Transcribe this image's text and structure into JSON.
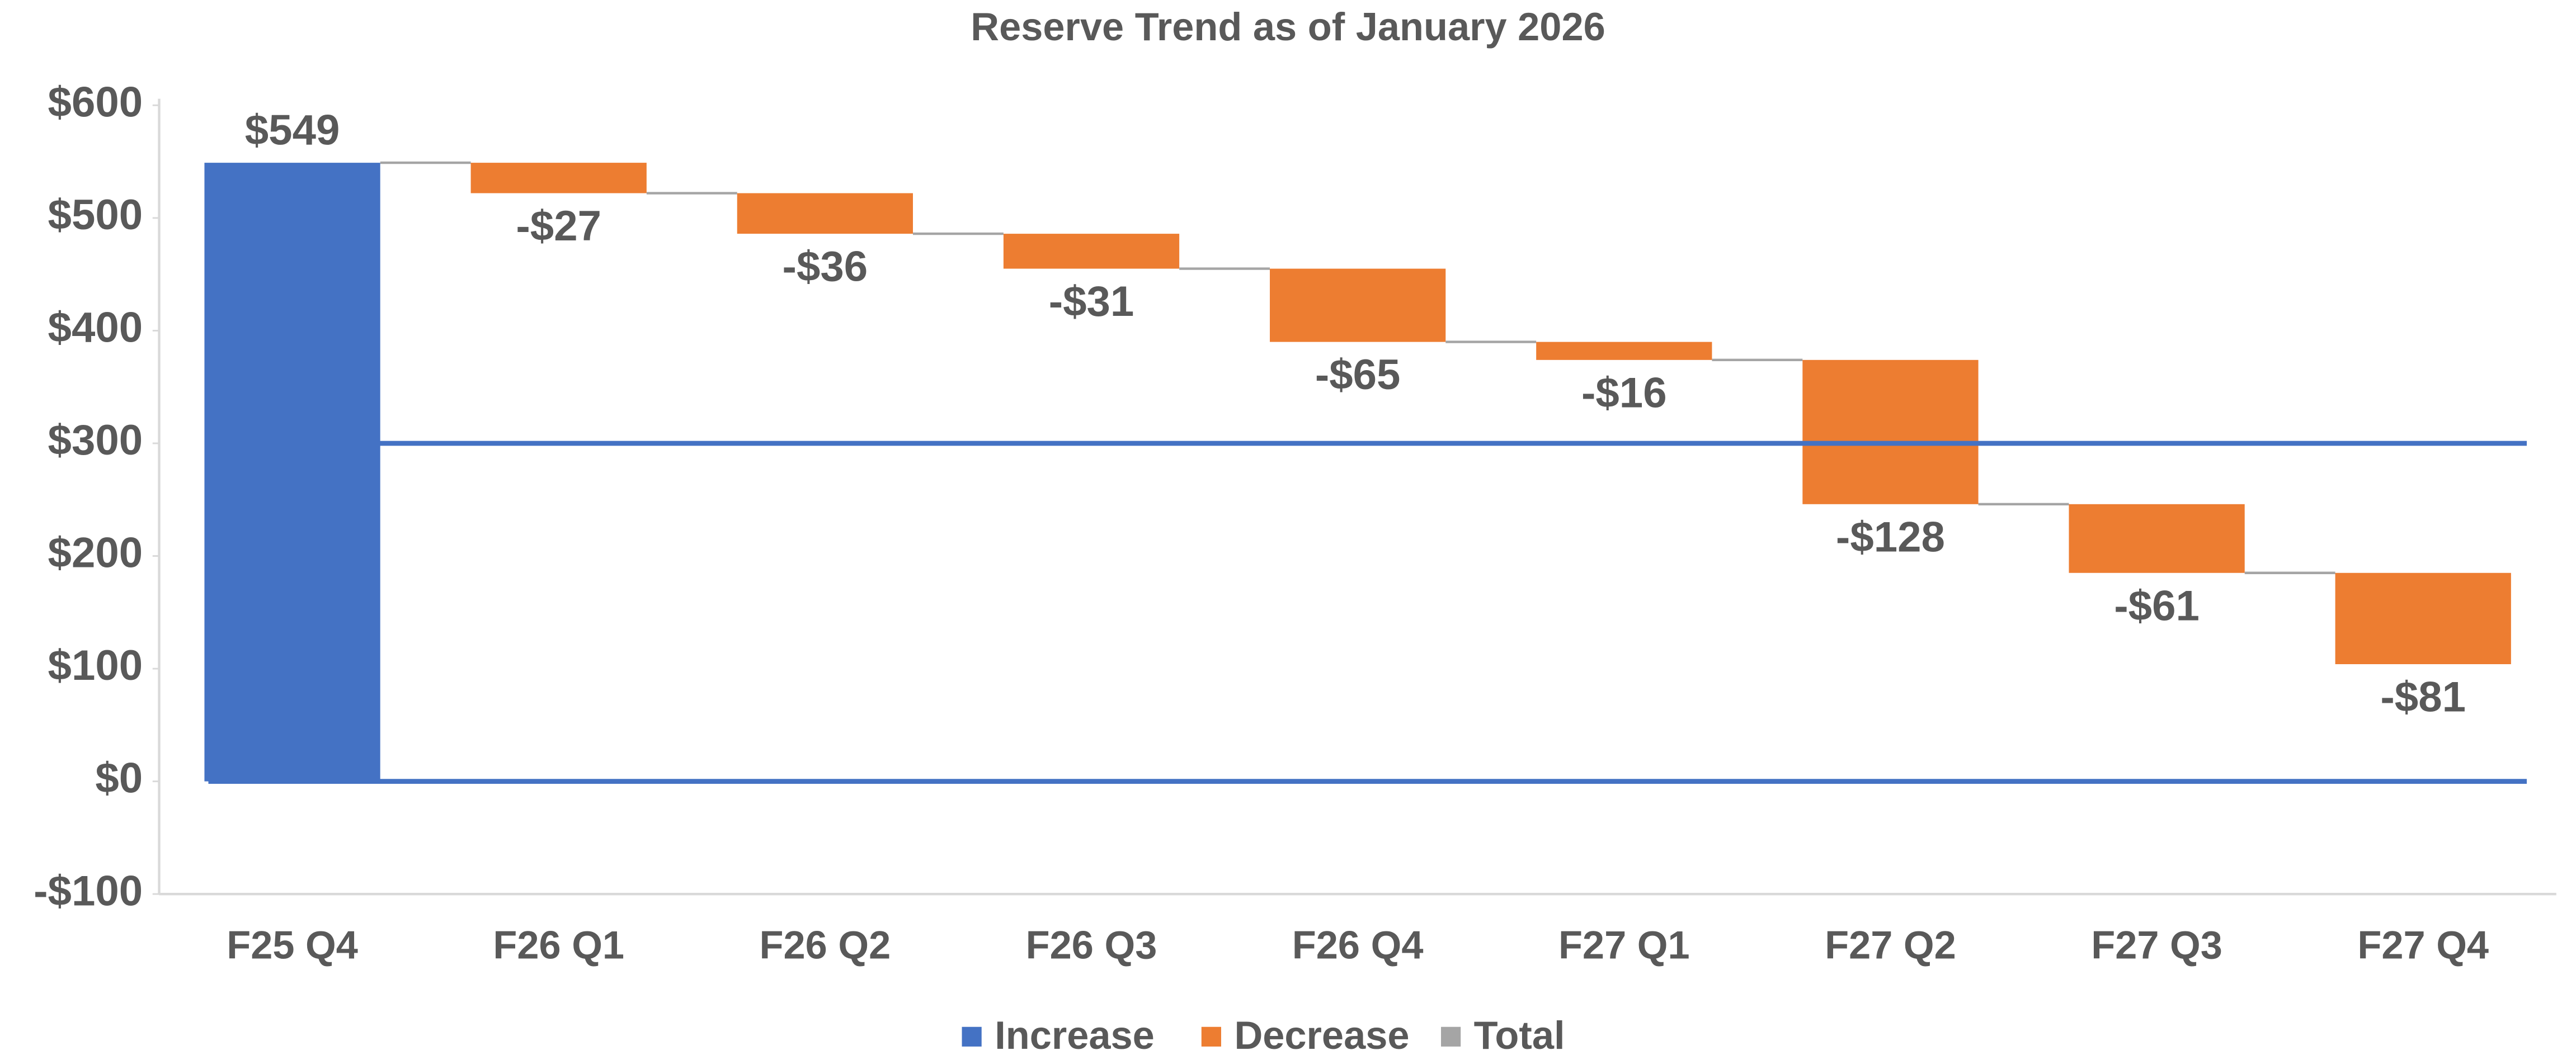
{
  "chart_data": {
    "type": "waterfall",
    "title": "Reserve Trend as of January 2026",
    "categories": [
      "F25 Q4",
      "F26 Q1",
      "F26 Q2",
      "F26 Q3",
      "F26 Q4",
      "F27 Q1",
      "F27 Q2",
      "F27 Q3",
      "F27 Q4"
    ],
    "values": [
      549,
      -27,
      -36,
      -31,
      -65,
      -16,
      -128,
      -61,
      -81
    ],
    "value_labels": [
      "$549",
      "-$27",
      "-$36",
      "-$31",
      "-$65",
      "-$16",
      "-$128",
      "-$61",
      "-$81"
    ],
    "legend": [
      {
        "name": "Increase",
        "color": "#4472c4"
      },
      {
        "name": "Decrease",
        "color": "#ed7d31"
      },
      {
        "name": "Total",
        "color": "#a5a5a5"
      }
    ],
    "ylim": [
      -100,
      600
    ],
    "yticks": [
      {
        "value": -100,
        "label": "-$100"
      },
      {
        "value": 0,
        "label": "$0"
      },
      {
        "value": 100,
        "label": "$100"
      },
      {
        "value": 200,
        "label": "$200"
      },
      {
        "value": 300,
        "label": "$300"
      },
      {
        "value": 400,
        "label": "$400"
      },
      {
        "value": 500,
        "label": "$500"
      },
      {
        "value": 600,
        "label": "$600"
      }
    ],
    "reference_lines": [
      0,
      300
    ],
    "reference_line_color": "#4472c4",
    "grid": false
  }
}
